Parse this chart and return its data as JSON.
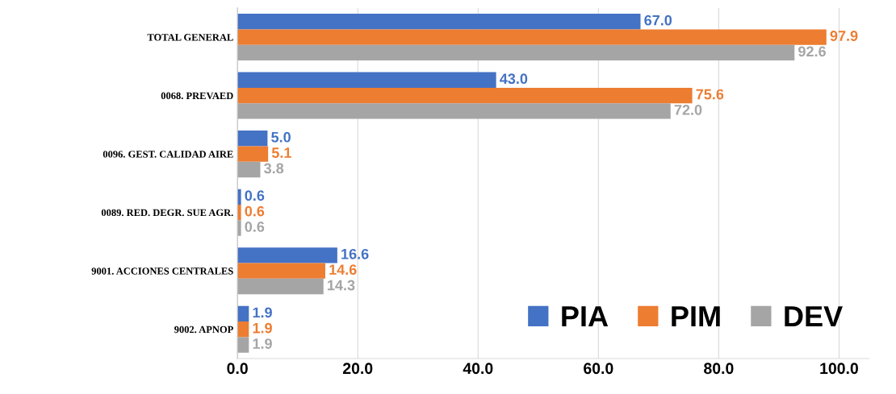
{
  "chart_data": {
    "type": "bar",
    "orientation": "horizontal",
    "categories": [
      "TOTAL GENERAL",
      "0068. PREVAED",
      "0096. GEST. CALIDAD AIRE",
      "0089. RED. DEGR. SUE AGR.",
      "9001. ACCIONES CENTRALES",
      "9002. APNOP"
    ],
    "series": [
      {
        "name": "PIA",
        "color": "#4472c4",
        "values": [
          67.0,
          43.0,
          5.0,
          0.6,
          16.6,
          1.9
        ],
        "value_labels": [
          "67.0",
          "43.0",
          "5.0",
          "0.6",
          "16.6",
          "1.9"
        ]
      },
      {
        "name": "PIM",
        "color": "#ed7d31",
        "values": [
          97.9,
          75.6,
          5.1,
          0.6,
          14.6,
          1.9
        ],
        "value_labels": [
          "97.9",
          "75.6",
          "5.1",
          "0.6",
          "14.6",
          "1.9"
        ]
      },
      {
        "name": "DEV",
        "color": "#a5a5a5",
        "values": [
          92.6,
          72.0,
          3.8,
          0.6,
          14.3,
          1.9
        ],
        "value_labels": [
          "92.6",
          "72.0",
          "3.8",
          "0.6",
          "14.3",
          "1.9"
        ]
      }
    ],
    "xlim": [
      0,
      105
    ],
    "xticks": [
      {
        "value": 0,
        "label": "0.0"
      },
      {
        "value": 20,
        "label": "20.0"
      },
      {
        "value": 40,
        "label": "40.0"
      },
      {
        "value": 60,
        "label": "60.0"
      },
      {
        "value": 80,
        "label": "80.0"
      },
      {
        "value": 100,
        "label": "100.0"
      }
    ],
    "grid": "x",
    "legend": "bottom right"
  }
}
